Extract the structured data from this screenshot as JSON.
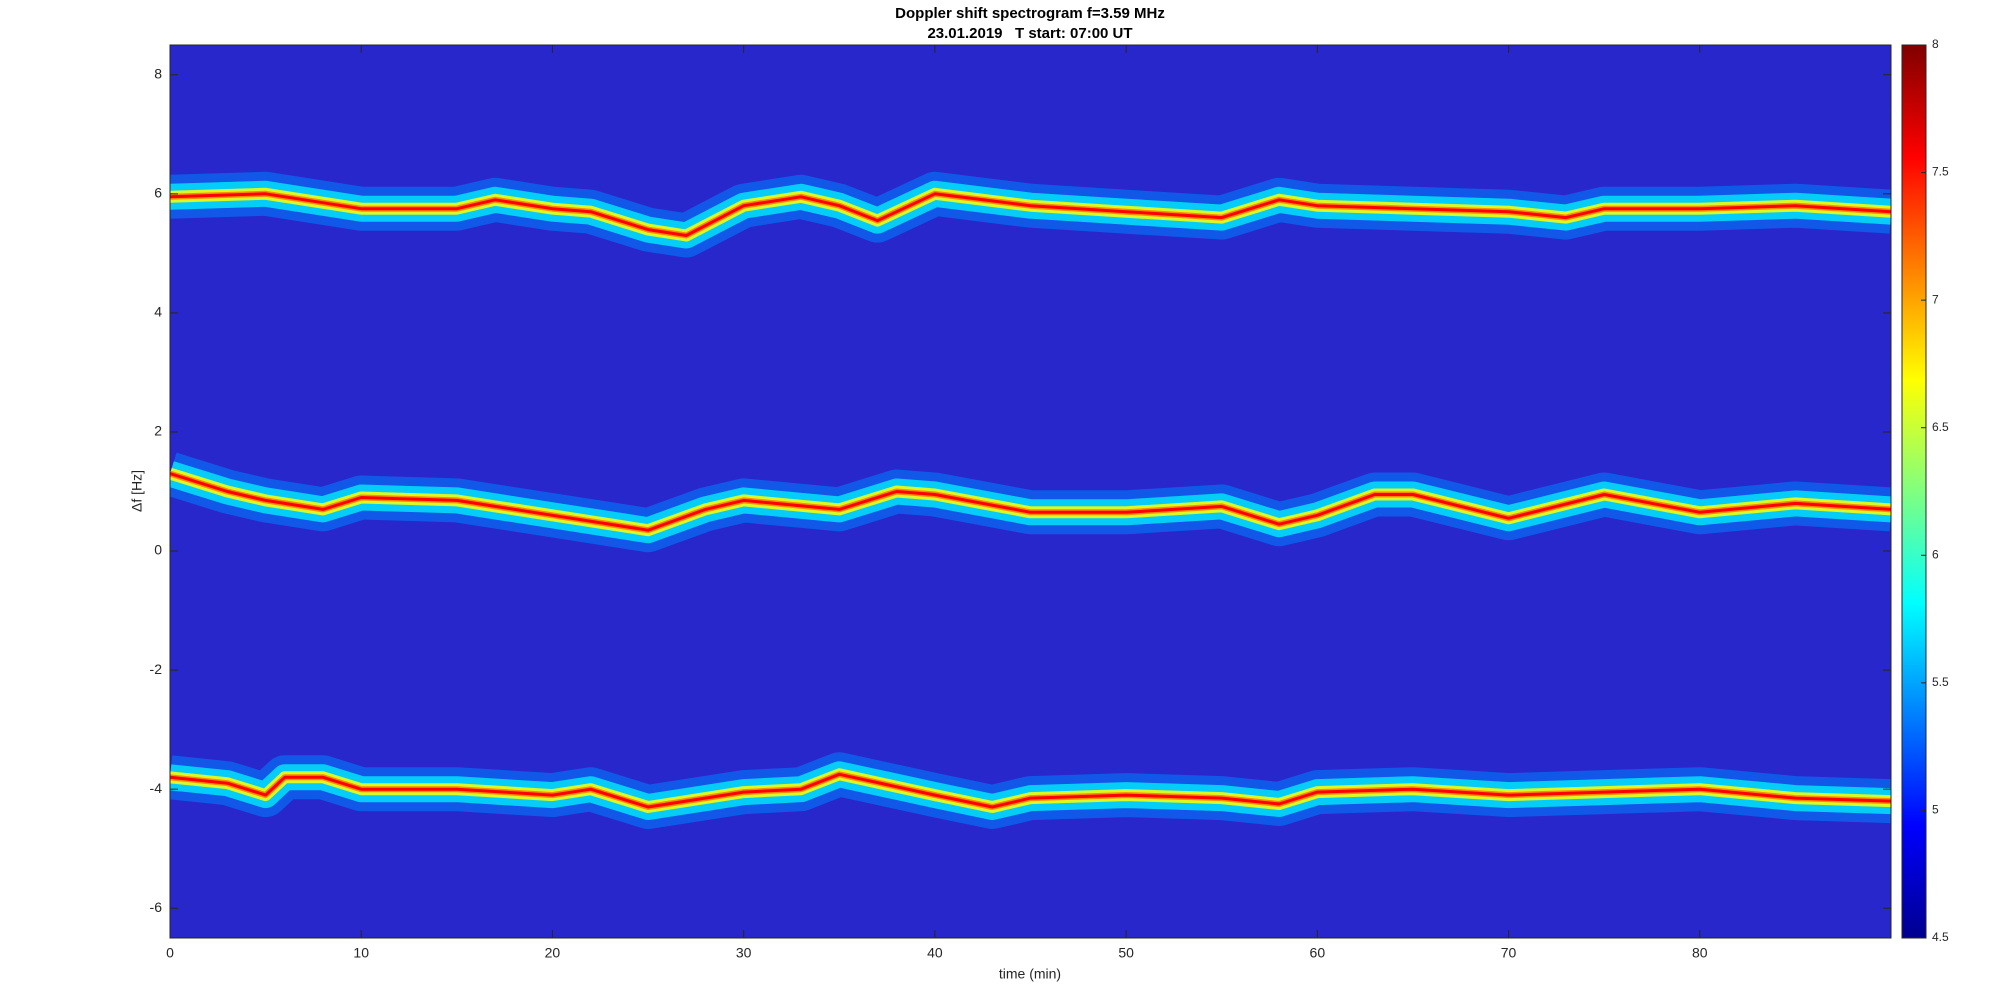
{
  "chart_data": {
    "type": "spectrogram",
    "title": "Doppler shift spectrogram f=3.59 MHz",
    "subtitle": "23.01.2019   T start: 07:00 UT",
    "xlabel": "time (min)",
    "ylabel": "Δf [Hz]",
    "xlim": [
      0,
      90
    ],
    "xticks": [
      0,
      10,
      20,
      30,
      40,
      50,
      60,
      70,
      80
    ],
    "ylim": [
      -6.5,
      8.5
    ],
    "yticks": [
      -6,
      -4,
      -2,
      0,
      2,
      4,
      6,
      8
    ],
    "clim": [
      4.5,
      8
    ],
    "cticks": [
      4.5,
      5,
      5.5,
      6,
      6.5,
      7,
      7.5,
      8
    ],
    "colormap": [
      "#00008f",
      "#0000ff",
      "#0080ff",
      "#00ffff",
      "#80ff80",
      "#ffff00",
      "#ff8000",
      "#ff0000",
      "#800000"
    ],
    "series": [
      {
        "color": "#ff0000",
        "x": [
          0,
          5,
          10,
          15,
          17,
          20,
          22,
          25,
          27,
          30,
          33,
          35,
          37,
          40,
          45,
          50,
          55,
          58,
          60,
          65,
          70,
          73,
          75,
          80,
          85,
          90
        ],
        "values": [
          5.95,
          6.0,
          5.75,
          5.75,
          5.9,
          5.75,
          5.7,
          5.4,
          5.3,
          5.8,
          5.95,
          5.8,
          5.55,
          6.0,
          5.8,
          5.7,
          5.6,
          5.9,
          5.8,
          5.75,
          5.7,
          5.6,
          5.75,
          5.75,
          5.8,
          5.7
        ]
      },
      {
        "color": "#ff0000",
        "x": [
          0,
          3,
          5,
          8,
          10,
          15,
          20,
          25,
          28,
          30,
          35,
          38,
          40,
          45,
          50,
          55,
          58,
          60,
          63,
          65,
          70,
          75,
          80,
          85,
          90
        ],
        "values": [
          1.3,
          1.0,
          0.85,
          0.7,
          0.9,
          0.85,
          0.6,
          0.35,
          0.7,
          0.85,
          0.7,
          1.0,
          0.95,
          0.65,
          0.65,
          0.75,
          0.45,
          0.6,
          0.95,
          0.95,
          0.55,
          0.95,
          0.65,
          0.8,
          0.7
        ]
      },
      {
        "color": "#ff0000",
        "x": [
          0,
          3,
          5,
          6,
          8,
          10,
          15,
          20,
          22,
          25,
          30,
          33,
          35,
          40,
          43,
          45,
          50,
          55,
          58,
          60,
          65,
          70,
          75,
          80,
          85,
          90
        ],
        "values": [
          -3.8,
          -3.9,
          -4.1,
          -3.8,
          -3.8,
          -4.0,
          -4.0,
          -4.1,
          -4.0,
          -4.3,
          -4.05,
          -4.0,
          -3.75,
          -4.1,
          -4.3,
          -4.15,
          -4.1,
          -4.15,
          -4.25,
          -4.05,
          -4.0,
          -4.1,
          -4.05,
          -4.0,
          -4.15,
          -4.2
        ]
      }
    ]
  }
}
